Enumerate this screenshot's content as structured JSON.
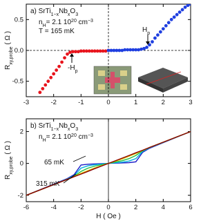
{
  "chart_data": [
    {
      "type": "scatter",
      "ylabel": [
        "R",
        "xy,probe",
        " ( Ω )"
      ],
      "annotations": {
        "sample": [
          "a) SrTi",
          "1−x",
          "Nb",
          "x",
          "O",
          "3"
        ],
        "density": [
          "n",
          "H",
          "= 2.1 10",
          "20",
          " cm",
          "−3"
        ],
        "temperature": "T = 165 mK",
        "hp": [
          "H",
          "p"
        ],
        "minus_hp": [
          "-H",
          "p"
        ]
      },
      "series": [
        {
          "color": "#e8141c",
          "x": [
            -2.5,
            -2.4,
            -2.3,
            -2.2,
            -2.1,
            -2.0,
            -1.9,
            -1.8,
            -1.7,
            -1.6,
            -1.5,
            -1.4,
            -1.3,
            -1.2,
            -1.1,
            -1.0,
            -0.9,
            -0.8,
            -0.7,
            -0.6,
            -0.5,
            -0.4,
            -0.3,
            -0.2,
            -0.1,
            0
          ],
          "values": [
            -0.68,
            -0.62,
            -0.56,
            -0.5,
            -0.44,
            -0.38,
            -0.32,
            -0.26,
            -0.19,
            -0.12,
            -0.06,
            -0.03,
            -0.02,
            -0.02,
            -0.02,
            -0.01,
            -0.01,
            -0.01,
            -0.01,
            -0.01,
            -0.01,
            -0.01,
            -0.01,
            -0.01,
            -0.01,
            0
          ]
        },
        {
          "color": "#1f3fe0",
          "x": [
            0,
            0.1,
            0.2,
            0.3,
            0.4,
            0.5,
            0.6,
            0.7,
            0.8,
            0.9,
            1.0,
            1.1,
            1.2,
            1.3,
            1.4,
            1.5,
            1.6,
            1.7,
            1.8,
            1.9,
            2.0,
            2.1,
            2.2,
            2.3,
            2.4,
            2.5,
            2.6,
            2.7,
            2.8,
            2.9,
            3.0
          ],
          "values": [
            0,
            0,
            0,
            0,
            0,
            0,
            0.01,
            0.01,
            0.01,
            0.01,
            0.01,
            0.01,
            0.02,
            0.03,
            0.05,
            0.09,
            0.14,
            0.2,
            0.25,
            0.3,
            0.35,
            0.4,
            0.45,
            0.5,
            0.54,
            0.58,
            0.62,
            0.66,
            0.7,
            0.73,
            0.75
          ]
        }
      ],
      "xlim": [
        -3,
        3
      ],
      "ylim": [
        -0.75,
        0.75
      ],
      "xticks": [
        -3,
        -2,
        -1,
        0,
        1,
        2,
        3
      ],
      "yticks": [
        -0.5,
        {
          "value": 0,
          "label": "0.0"
        },
        0.5
      ]
    },
    {
      "type": "line",
      "xlabel": "H ( Oe )",
      "ylabel": [
        "R",
        "xy,probe",
        " ( Ω )"
      ],
      "annotations": {
        "sample": [
          "b) SrTi",
          "1−x",
          "Nb",
          "x",
          "O",
          "3"
        ],
        "density": [
          "n",
          "H",
          "= 2.1 10",
          "20",
          " cm",
          "−3"
        ]
      },
      "x": [
        -6,
        -4,
        -3,
        -2.5,
        -2,
        -1.5,
        -1,
        0,
        1,
        1.5,
        2,
        2.5,
        3,
        4,
        6
      ],
      "series": [
        {
          "name": "65 mK",
          "color": "#1c1cc8",
          "values": [
            -2,
            -1.3,
            -0.95,
            -0.7,
            -0.1,
            -0.05,
            -0.03,
            0,
            0.03,
            0.05,
            0.1,
            0.7,
            0.95,
            1.3,
            2
          ]
        },
        {
          "color": "#00b0e0",
          "values": [
            -2,
            -1.32,
            -0.98,
            -0.76,
            -0.3,
            -0.15,
            -0.08,
            0,
            0.08,
            0.15,
            0.3,
            0.76,
            0.98,
            1.32,
            2
          ]
        },
        {
          "color": "#20c040",
          "values": [
            -2,
            -1.33,
            -1,
            -0.8,
            -0.5,
            -0.3,
            -0.17,
            0,
            0.17,
            0.3,
            0.5,
            0.8,
            1,
            1.33,
            2
          ]
        },
        {
          "color": "#e0c000",
          "values": [
            -2,
            -1.33,
            -1,
            -0.82,
            -0.62,
            -0.45,
            -0.28,
            0,
            0.28,
            0.45,
            0.62,
            0.82,
            1,
            1.33,
            2
          ]
        },
        {
          "name": "315 mK",
          "color": "#8b0000",
          "values": [
            -2,
            -1.33,
            -1,
            -0.83,
            -0.67,
            -0.5,
            -0.33,
            0,
            0.33,
            0.5,
            0.67,
            0.83,
            1,
            1.33,
            2
          ]
        }
      ],
      "xlim": [
        -6,
        6
      ],
      "ylim": [
        -2.4,
        2.8
      ],
      "xticks": [
        -6,
        -4,
        -2,
        0,
        2,
        4,
        6
      ],
      "yticks": [
        -2,
        0,
        2
      ]
    }
  ]
}
